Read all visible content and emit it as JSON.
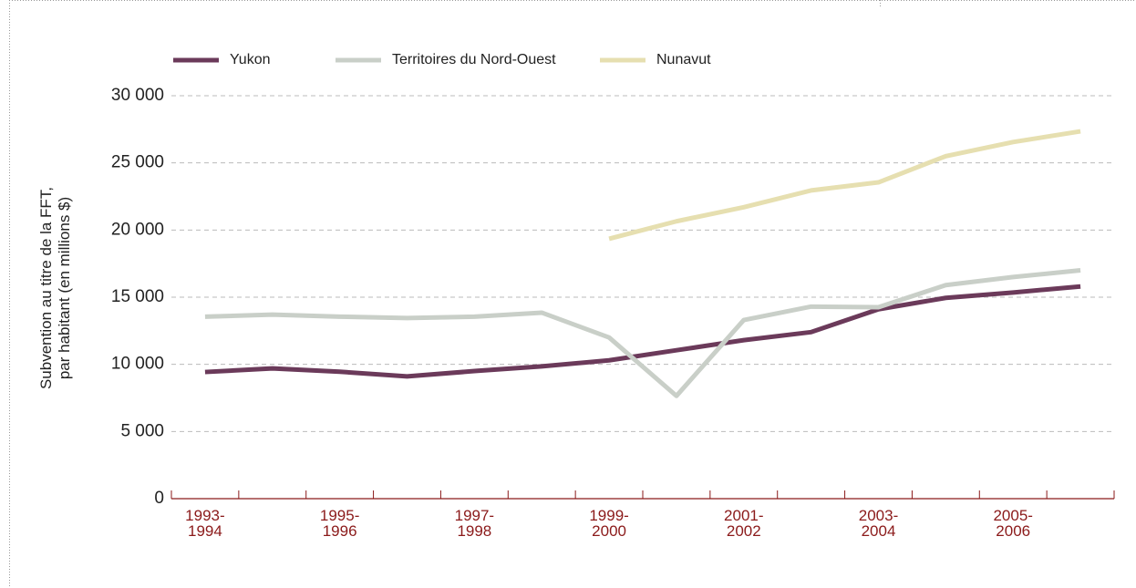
{
  "chart_data": {
    "type": "line",
    "y_label": [
      "Subvention au titre de la FFT,",
      "par habitant (en millions $)"
    ],
    "categories": [
      "1993-1994",
      null,
      "1995-1996",
      null,
      "1997-1998",
      null,
      "1999-2000",
      null,
      "2001-2002",
      null,
      "2003-2004",
      null,
      "2005-2006",
      null
    ],
    "series": [
      {
        "name": "Yukon",
        "color": "#6b3a5a",
        "values": [
          9430,
          9700,
          9450,
          9100,
          9500,
          9850,
          10300,
          11050,
          11800,
          12400,
          14100,
          14950,
          15350,
          15800
        ]
      },
      {
        "name": "Territoires du Nord-Ouest",
        "color": "#c9cfc8",
        "values": [
          13550,
          13700,
          13550,
          13450,
          13550,
          13850,
          12000,
          7650,
          13300,
          14300,
          14250,
          15900,
          16500,
          17000
        ]
      },
      {
        "name": "Nunavut",
        "color": "#e6dfb0",
        "values": [
          null,
          null,
          null,
          null,
          null,
          null,
          19350,
          20650,
          21700,
          22950,
          23550,
          25500,
          26550,
          27350
        ]
      }
    ],
    "ylim": [
      0,
      30000
    ],
    "yticks": [
      0,
      {
        "value": 5000,
        "label": "5 000"
      },
      {
        "value": 10000,
        "label": "10 000"
      },
      {
        "value": 15000,
        "label": "15 000"
      },
      {
        "value": 20000,
        "label": "20 000"
      },
      {
        "value": 25000,
        "label": "25 000"
      },
      {
        "value": 30000,
        "label": "30 000"
      }
    ],
    "grid": true,
    "legend": "top"
  }
}
